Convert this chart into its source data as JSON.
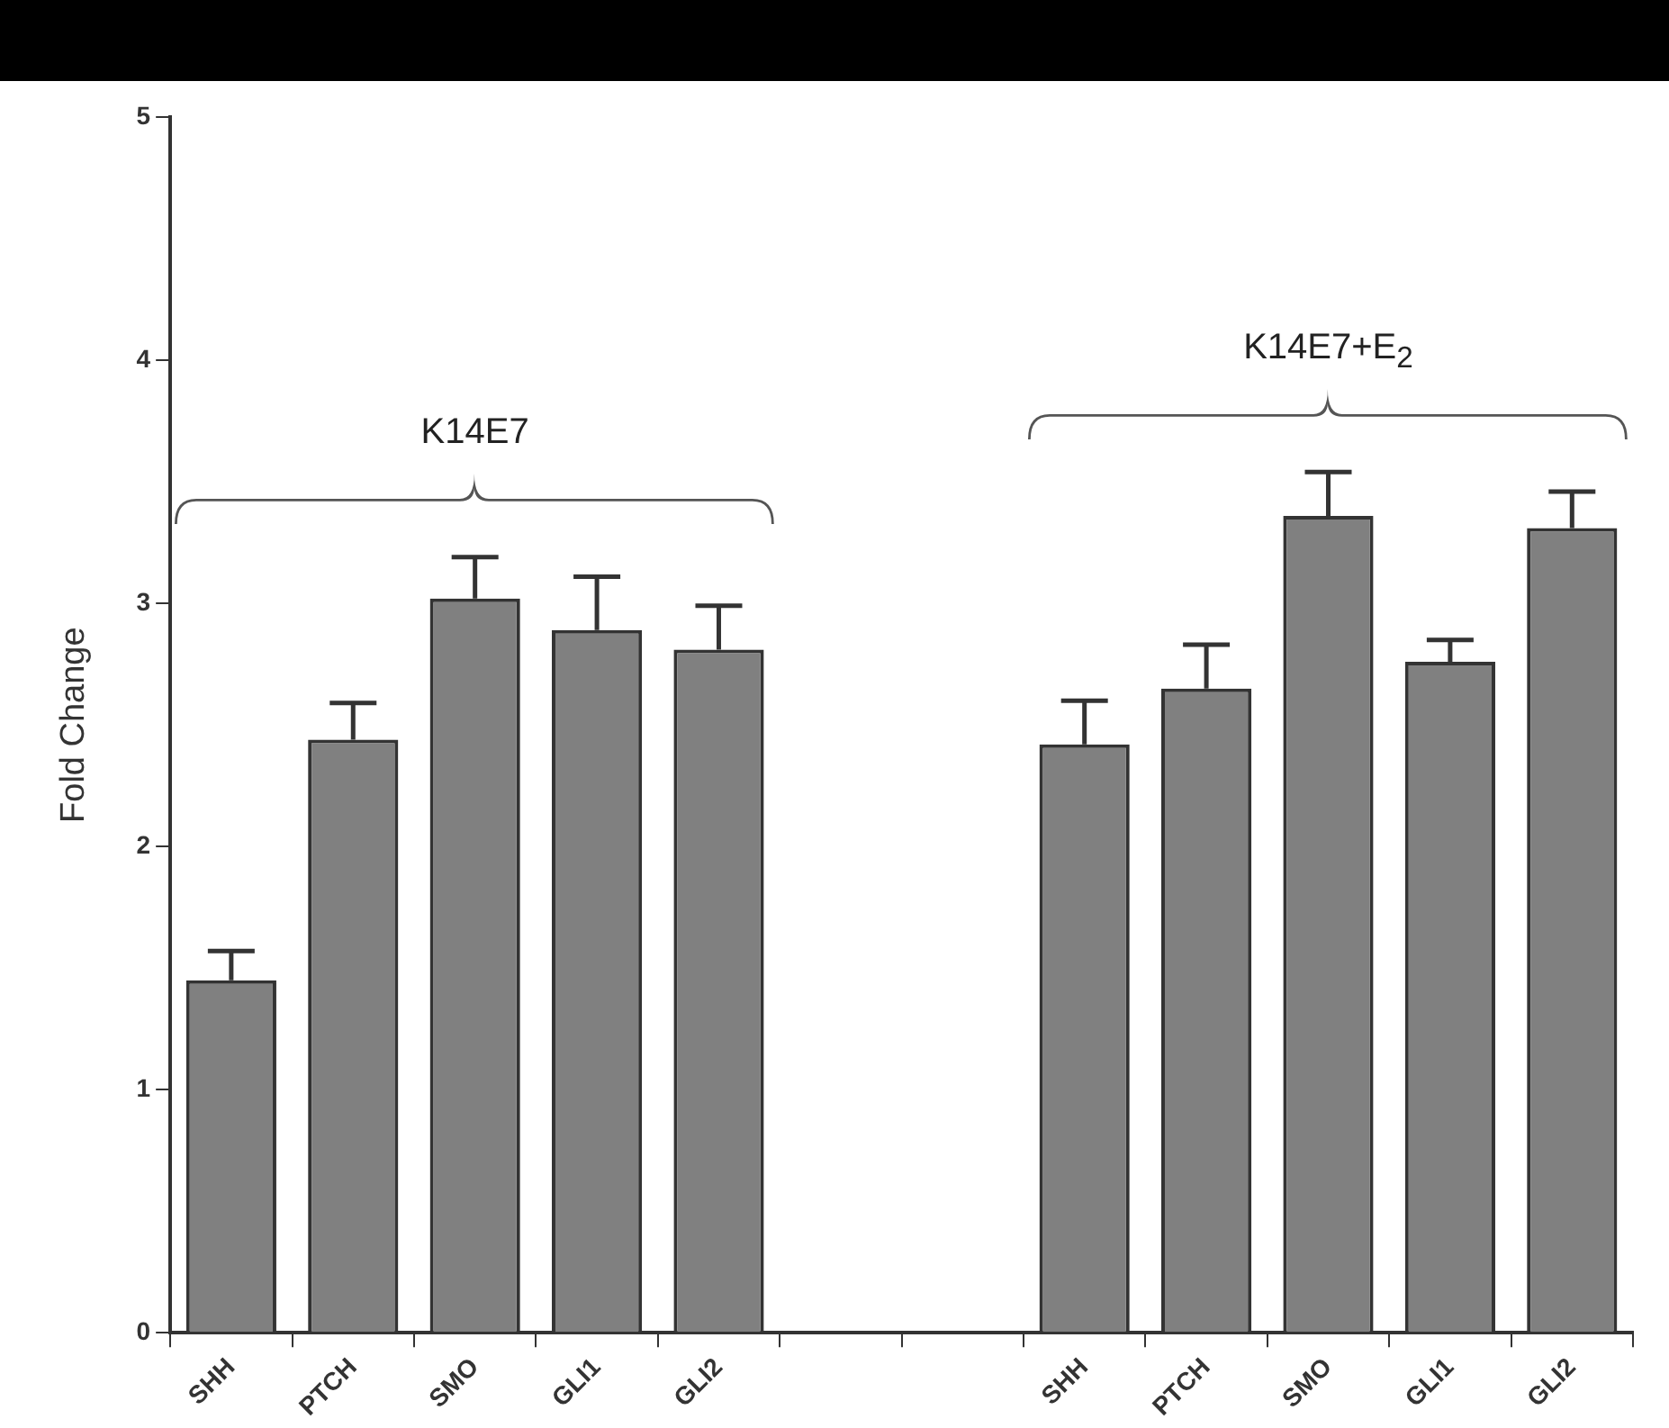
{
  "chart_data": {
    "type": "bar",
    "ylabel": "Fold Change",
    "categories": [
      "SHH",
      "PTCH",
      "SMO",
      "GLI1",
      "GLI2",
      null,
      null,
      "SHH",
      "PTCH",
      "SMO",
      "GLI1",
      "GLI2"
    ],
    "values": [
      1.45,
      2.44,
      3.02,
      2.89,
      2.81,
      null,
      null,
      2.42,
      2.65,
      3.36,
      2.76,
      3.31
    ],
    "errors": [
      0.12,
      0.15,
      0.17,
      0.22,
      0.18,
      null,
      null,
      0.18,
      0.18,
      0.18,
      0.09,
      0.15
    ],
    "color": "#808080",
    "ylim": [
      0,
      5
    ],
    "yticks": [
      0,
      1,
      2,
      3,
      4,
      5
    ],
    "grid": false,
    "annotations": [
      "K14E7",
      "K14E7+E$_{2}$"
    ]
  }
}
